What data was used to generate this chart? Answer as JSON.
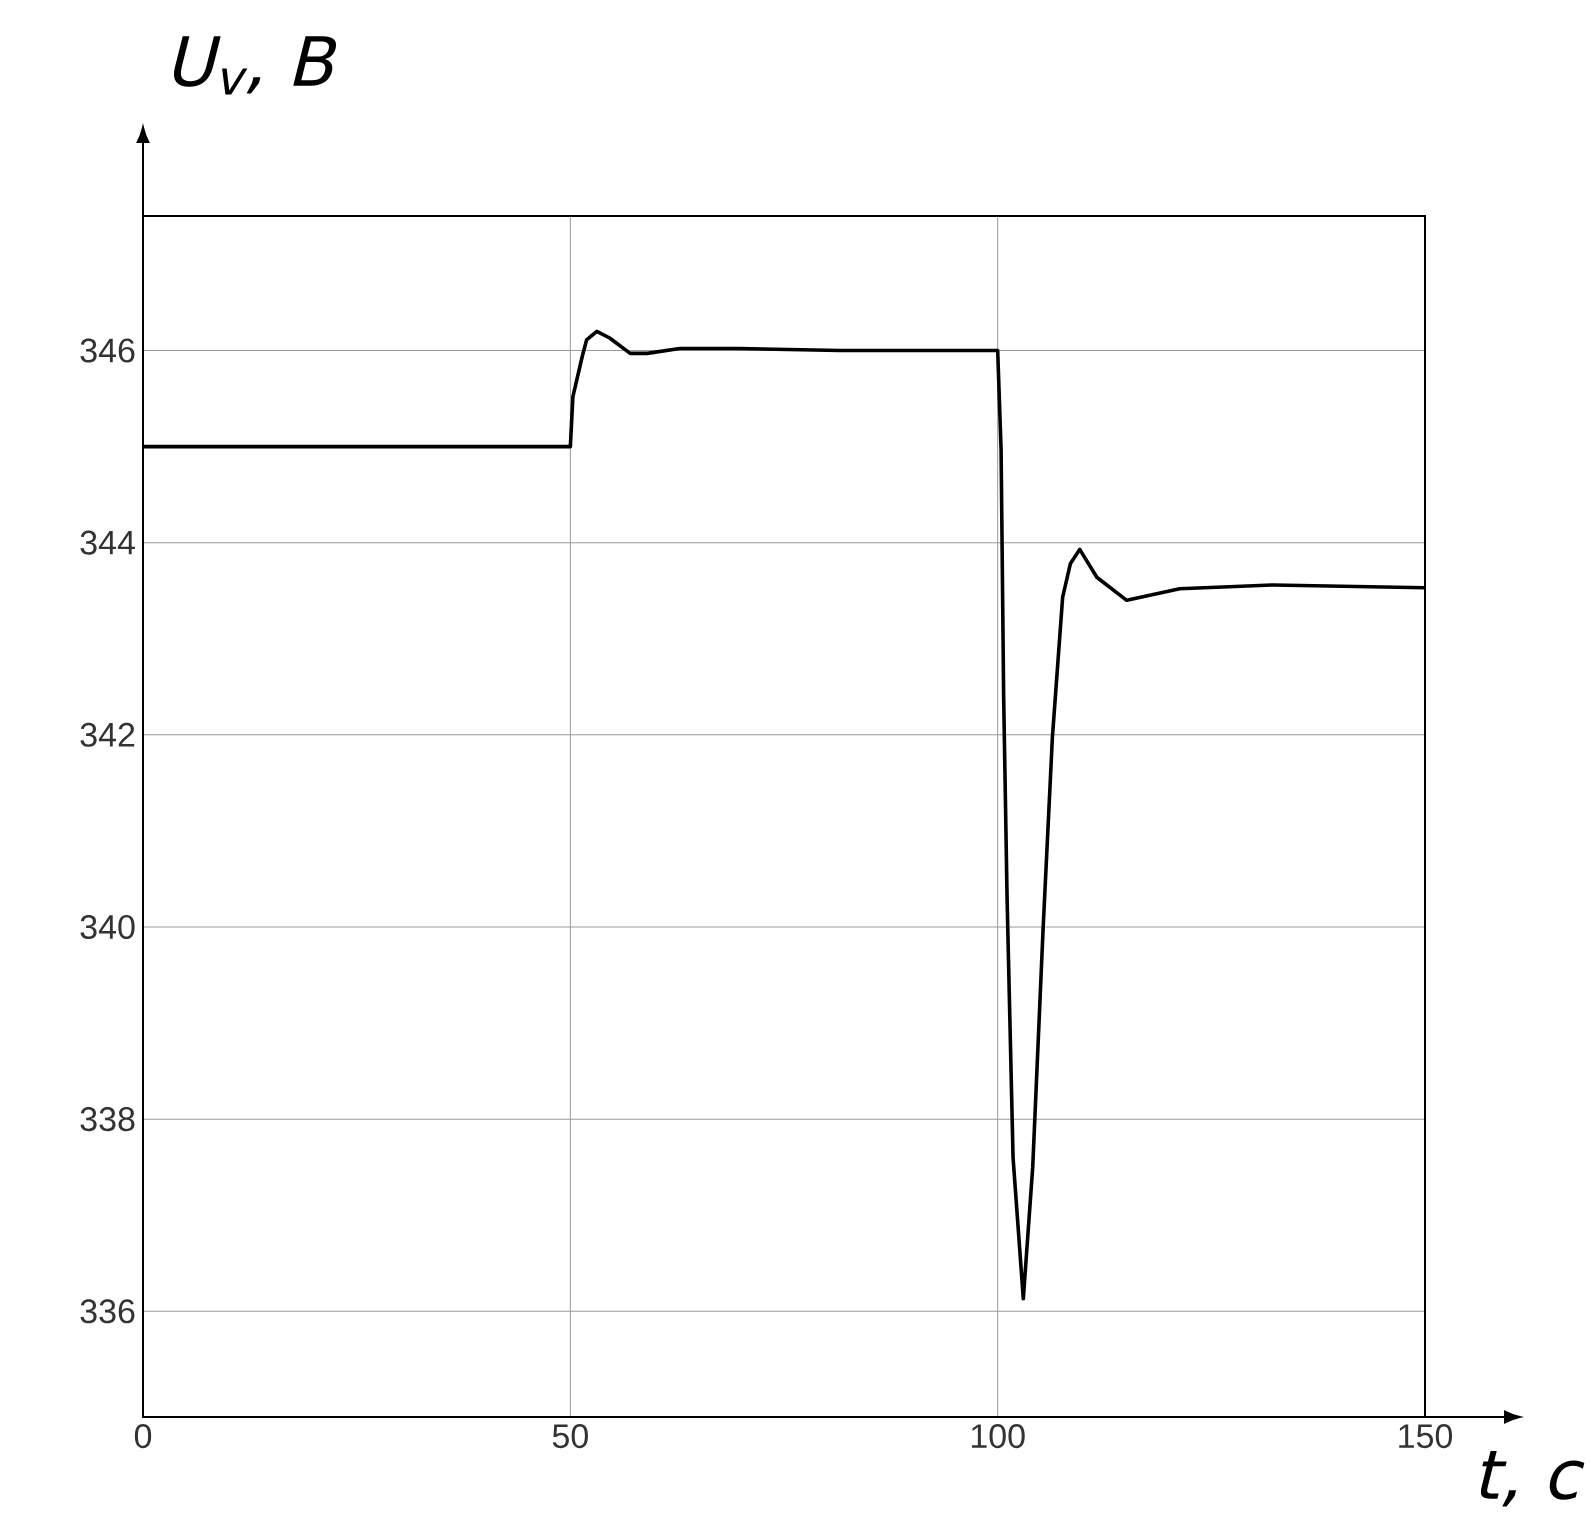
{
  "chart_data": {
    "type": "line",
    "xlabel": "t, с",
    "ylabel": "U$_{v}$, В",
    "x": [
      0,
      50,
      50.3,
      51.4,
      51.9,
      53.1,
      54.6,
      57.0,
      59.0,
      62.8,
      69.8,
      81.5,
      100,
      100.4,
      100.7,
      101.1,
      101.8,
      103.0,
      104.1,
      105.3,
      106.4,
      107.6,
      108.5,
      109.6,
      111.6,
      115.1,
      121.3,
      132.2,
      150
    ],
    "values": [
      345.0,
      345.0,
      345.52,
      345.94,
      346.11,
      346.2,
      346.13,
      345.97,
      345.97,
      346.02,
      346.02,
      346.0,
      346.0,
      344.97,
      342.39,
      340.3,
      337.6,
      336.13,
      337.5,
      339.95,
      341.97,
      343.43,
      343.78,
      343.93,
      343.64,
      343.4,
      343.52,
      343.56,
      343.53
    ],
    "color": "#000000",
    "marker": "none",
    "line_style": "solid",
    "grid": true,
    "xlim": [
      0,
      150
    ],
    "ylim": [
      334.9,
      347.4
    ],
    "xticks": [
      0,
      50,
      100,
      150
    ],
    "yticks": [
      336,
      338,
      340,
      342,
      344,
      346
    ]
  }
}
